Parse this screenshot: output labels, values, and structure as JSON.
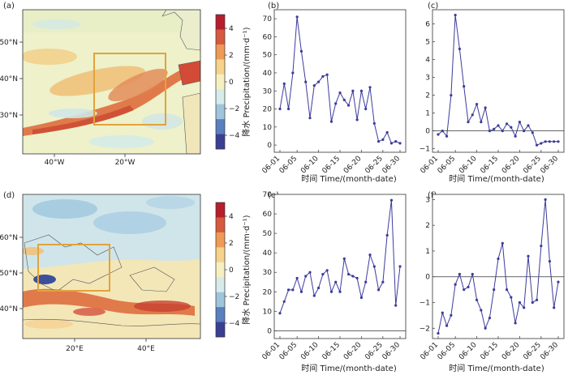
{
  "colors": {
    "line": "#3b3b9c",
    "box": "#e3a23c",
    "land_outline": "#555555",
    "colorbar": [
      "#3b3f94",
      "#5a7fbf",
      "#9fc5dd",
      "#d7ebe9",
      "#f6efc0",
      "#f7d28a",
      "#ef9a55",
      "#d85a3e",
      "#b81d2c"
    ]
  },
  "maps": [
    {
      "panel_label": "(a)",
      "lat_ticks": [
        "50°N",
        "40°N",
        "30°N"
      ],
      "lon_ticks": [
        "40°W",
        "20°W"
      ],
      "colorbar_ticks": [
        "4",
        "2",
        "0",
        "−2",
        "−4"
      ],
      "colorbar_label": "降水 Precipitation/(mm·d⁻¹)"
    },
    {
      "panel_label": "(d)",
      "lat_ticks": [
        "60°N",
        "50°N",
        "40°N"
      ],
      "lon_ticks": [
        "20°E",
        "40°E"
      ],
      "colorbar_ticks": [
        "4",
        "2",
        "0",
        "−2",
        "−4"
      ],
      "colorbar_label": "降水 Precipitation/(mm·d⁻¹)"
    }
  ],
  "chart_data": [
    {
      "panel_label": "(b)",
      "type": "line",
      "xlabel": "时间 Time/(month-date)",
      "x_ticks": [
        "06-01",
        "06-05",
        "06-10",
        "06-15",
        "06-20",
        "06-25",
        "06-30"
      ],
      "ylim": [
        -4,
        75
      ],
      "y_ticks": [
        0,
        10,
        20,
        30,
        40,
        50,
        60,
        70
      ],
      "zero_line": false,
      "values": [
        20,
        34,
        20,
        40,
        71,
        52,
        35,
        15,
        33,
        35,
        38,
        39,
        13,
        23,
        29,
        25,
        22,
        30,
        14,
        30,
        20,
        32,
        12,
        2,
        3,
        7,
        1,
        2,
        1
      ]
    },
    {
      "panel_label": "(c)",
      "type": "line",
      "xlabel": "时间 Time/(month-date)",
      "x_ticks": [
        "06-01",
        "06-05",
        "06-10",
        "06-15",
        "06-20",
        "06-25",
        "06-30"
      ],
      "ylim": [
        -1.2,
        6.8
      ],
      "y_ticks": [
        -1,
        0,
        1,
        2,
        3,
        4,
        5,
        6
      ],
      "zero_line": true,
      "values": [
        -0.2,
        0,
        -0.3,
        2,
        6.5,
        4.6,
        2.5,
        0.5,
        0.9,
        1.5,
        0.5,
        1.3,
        0,
        0.1,
        0.3,
        0,
        0.4,
        0.2,
        -0.3,
        0.5,
        0,
        0.3,
        -0.1,
        -0.8,
        -0.7,
        -0.6,
        -0.6,
        -0.6,
        -0.6
      ]
    },
    {
      "panel_label": "(e)",
      "type": "line",
      "xlabel": "时间 Time/(month-date)",
      "x_ticks": [
        "06-01",
        "06-05",
        "06-10",
        "06-15",
        "06-20",
        "06-25",
        "06-30"
      ],
      "ylim": [
        -4,
        70
      ],
      "y_ticks": [
        0,
        10,
        20,
        30,
        40,
        50,
        60,
        70
      ],
      "zero_line": true,
      "values": [
        9,
        15,
        21,
        21,
        27,
        20,
        28,
        30,
        18,
        22,
        29,
        31,
        20,
        25,
        20,
        37,
        29,
        28,
        27,
        17,
        25,
        39,
        33,
        21,
        25,
        49,
        67,
        13,
        33
      ]
    },
    {
      "panel_label": "(f)",
      "type": "line",
      "xlabel": "时间 Time/(month-date)",
      "x_ticks": [
        "06-01",
        "06-05",
        "06-10",
        "06-15",
        "06-20",
        "06-25",
        "06-30"
      ],
      "ylim": [
        -2.4,
        3.2
      ],
      "y_ticks": [
        -2,
        -1,
        0,
        1,
        2,
        3
      ],
      "zero_line": true,
      "values": [
        -2.2,
        -1.4,
        -1.9,
        -1.5,
        -0.3,
        0.1,
        -0.5,
        -0.4,
        0.1,
        -0.9,
        -1.3,
        -2,
        -1.6,
        -0.5,
        0.7,
        1.3,
        -0.5,
        -0.8,
        -1.8,
        -1,
        -1.2,
        0.8,
        -1,
        -0.9,
        1.2,
        3,
        0.6,
        -1.2,
        -0.2
      ]
    }
  ]
}
